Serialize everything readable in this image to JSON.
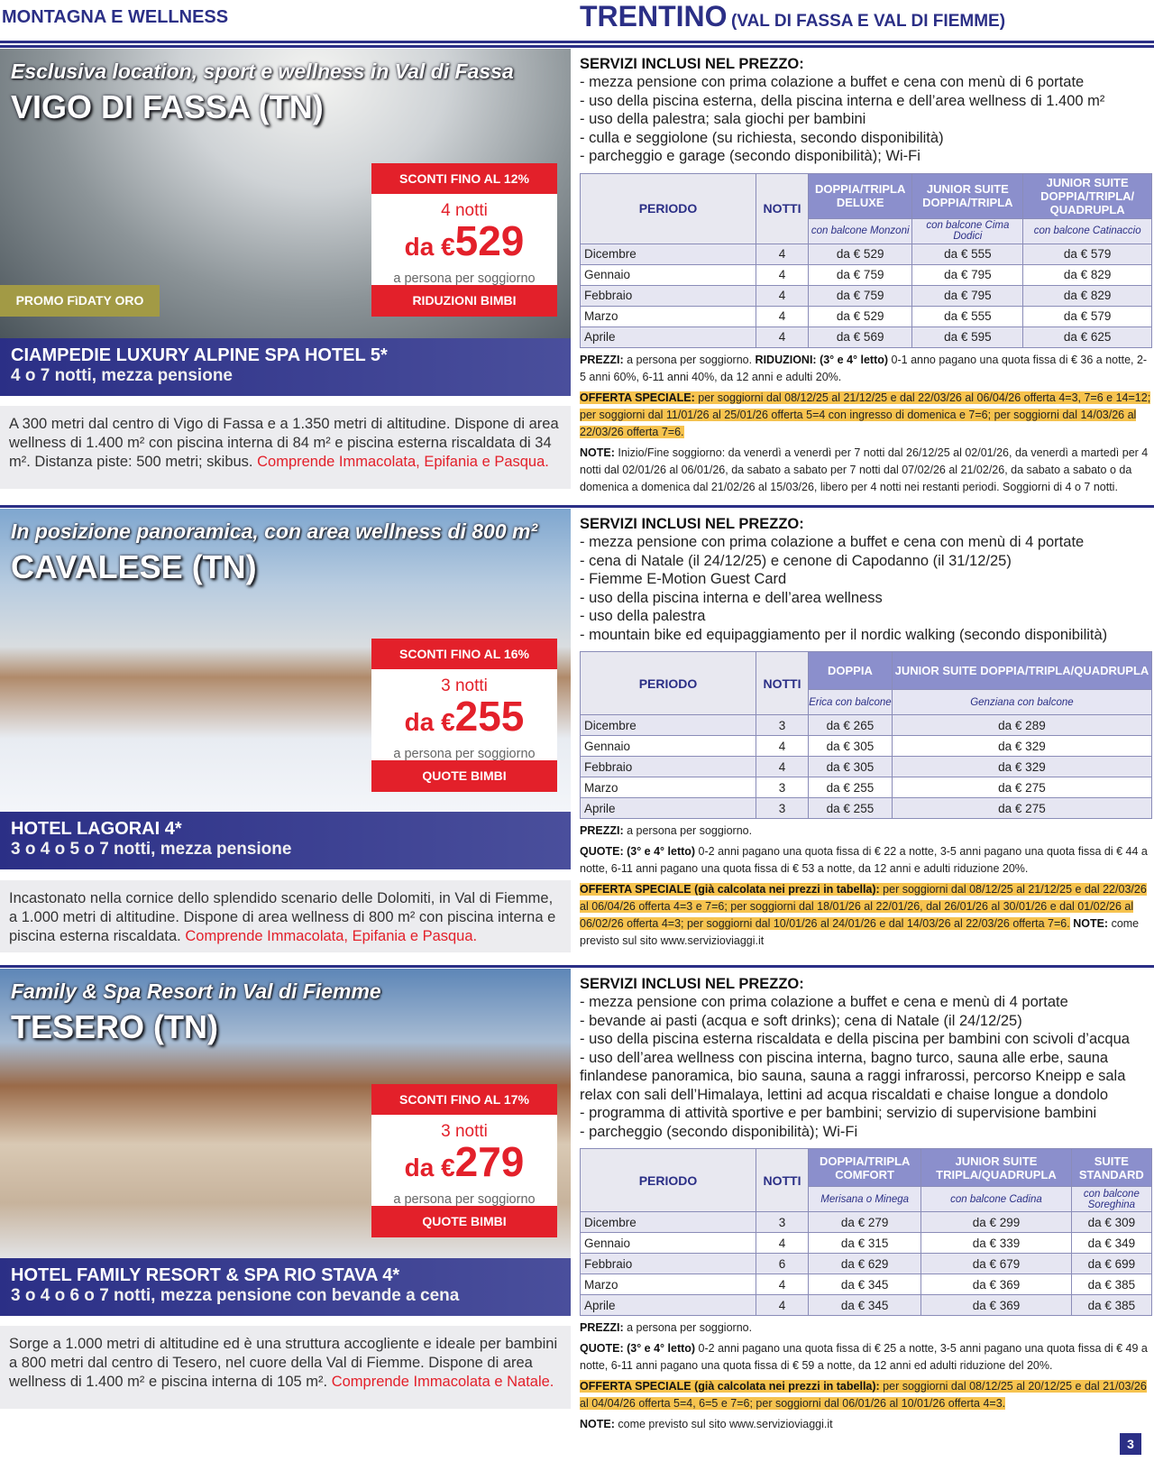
{
  "header": {
    "section": "MONTAGNA E WELLNESS",
    "region": "TRENTINO",
    "subregion": "(VAL DI FASSA E VAL DI FIEMME)"
  },
  "page_number": "3",
  "colors": {
    "brand_blue": "#2b2f86",
    "red": "#e3202a",
    "highlight": "#f6c34f",
    "promo": "#a29a45"
  },
  "hotels": [
    {
      "tagline": "Esclusiva location, sport e wellness in Val di Fassa",
      "town": "VIGO DI FASSA (TN)",
      "sconti": "SCONTI FINO AL 12%",
      "notti": "4 notti",
      "da": "da €",
      "price": "529",
      "per": "a persona per soggiorno",
      "bimbi": "RIDUZIONI BIMBI",
      "promo": "PROMO FìDATY ORO",
      "name": "CIAMPEDIE LUXURY ALPINE SPA HOTEL 5*",
      "stay": "4 o 7 notti, mezza pensione",
      "description": "A 300 metri dal centro di Vigo di Fassa e a 1.350 metri di altitudine. Dispone di area wellness di 1.400 m² con piscina interna di 84 m² e piscina esterna riscaldata di 34 m². Distanza piste: 500 metri; skibus.",
      "description_red": "Comprende Immacolata, Epifania e Pasqua.",
      "services_title": "SERVIZI INCLUSI NEL PREZZO:",
      "services": [
        "- mezza pensione con prima colazione a buffet e cena con menù di 6 portate",
        "- uso della piscina esterna, della piscina interna e dell’area wellness di 1.400 m²",
        "- uso della palestra; sala giochi per bambini",
        "- culla e seggiolone (su richiesta, secondo disponibilità)",
        "- parcheggio e garage (secondo disponibilità); Wi-Fi"
      ],
      "table": {
        "period_label": "PERIODO",
        "nights_label": "NOTTI",
        "columns": [
          {
            "title": "DOPPIA/TRIPLA DELUXE",
            "sub": "con balcone Monzoni"
          },
          {
            "title": "JUNIOR SUITE DOPPIA/TRIPLA",
            "sub": "con balcone Cima Dodici"
          },
          {
            "title": "JUNIOR SUITE DOPPIA/TRIPLA/ QUADRUPLA",
            "sub": "con balcone Catinaccio"
          }
        ],
        "rows": [
          [
            "Dicembre",
            "4",
            "da € 529",
            "da € 555",
            "da € 579"
          ],
          [
            "Gennaio",
            "4",
            "da € 759",
            "da € 795",
            "da € 829"
          ],
          [
            "Febbraio",
            "4",
            "da € 759",
            "da € 795",
            "da € 829"
          ],
          [
            "Marzo",
            "4",
            "da € 529",
            "da € 555",
            "da € 579"
          ],
          [
            "Aprile",
            "4",
            "da € 569",
            "da € 595",
            "da € 625"
          ]
        ]
      },
      "notes": [
        {
          "label": "PREZZI:",
          "text": " a persona per soggiorno. ",
          "label2": "RIDUZIONI: (3° e 4° letto)",
          "text2": " 0-1 anno pagano una quota fissa di € 36 a notte, 2-5 anni 60%, 6-11 anni 40%, da 12 anni e adulti 20%.",
          "hl": false
        },
        {
          "label": "OFFERTA SPECIALE:",
          "text": " per soggiorni dal 08/12/25 al 21/12/25 e dal 22/03/26 al 06/04/26 offerta 4=3, 7=6 e 14=12; per soggiorni dal 11/01/26 al 25/01/26 offerta 5=4 con ingresso di domenica e 7=6; per soggiorni dal 14/03/26 al 22/03/26 offerta 7=6.",
          "hl": true
        },
        {
          "label": "NOTE:",
          "text": " Inizio/Fine soggiorno: da venerdì a venerdì per 7 notti dal 26/12/25 al 02/01/26, da venerdì a martedì per 4 notti dal 02/01/26 al 06/01/26, da sabato a sabato per 7 notti dal 07/02/26 al 21/02/26, da sabato a sabato o da domenica a domenica dal 21/02/26 al 15/03/26, libero per 4 notti nei restanti periodi. Soggiorni di 4 o 7 notti.",
          "hl": false
        }
      ]
    },
    {
      "tagline": "In posizione panoramica, con area wellness di 800 m²",
      "town": "CAVALESE (TN)",
      "sconti": "SCONTI FINO AL 16%",
      "notti": "3 notti",
      "da": "da €",
      "price": "255",
      "per": "a persona per soggiorno",
      "bimbi": "QUOTE BIMBI",
      "name": "HOTEL LAGORAI 4*",
      "stay": "3 o 4 o 5 o 7 notti, mezza pensione",
      "description": "Incastonato nella cornice dello splendido scenario delle Dolomiti, in Val di Fiemme, a 1.000 metri di altitudine. Dispone di area wellness di 800 m² con piscina interna e piscina esterna riscaldata.",
      "description_red": "Comprende Immacolata, Epifania e Pasqua.",
      "services_title": "SERVIZI INCLUSI NEL PREZZO:",
      "services": [
        "- mezza pensione con prima colazione a buffet e cena con menù di 4 portate",
        "- cena di Natale (il 24/12/25) e cenone di Capodanno (il 31/12/25)",
        "- Fiemme E-Motion Guest Card",
        "- uso della piscina interna e dell’area wellness",
        "- uso della palestra",
        "- mountain bike ed equipaggiamento per il nordic walking (secondo disponibilità)"
      ],
      "table": {
        "period_label": "PERIODO",
        "nights_label": "NOTTI",
        "columns": [
          {
            "title": "DOPPIA",
            "sub": "Erica con balcone"
          },
          {
            "title": "JUNIOR SUITE DOPPIA/TRIPLA/QUADRUPLA",
            "sub": "Genziana con balcone"
          }
        ],
        "rows": [
          [
            "Dicembre",
            "3",
            "da € 265",
            "da € 289"
          ],
          [
            "Gennaio",
            "4",
            "da € 305",
            "da € 329"
          ],
          [
            "Febbraio",
            "4",
            "da € 305",
            "da € 329"
          ],
          [
            "Marzo",
            "3",
            "da € 255",
            "da € 275"
          ],
          [
            "Aprile",
            "3",
            "da € 255",
            "da € 275"
          ]
        ]
      },
      "notes": [
        {
          "label": "PREZZI:",
          "text": " a persona per soggiorno.",
          "hl": false
        },
        {
          "label": "QUOTE: (3° e 4° letto)",
          "text": " 0-2 anni pagano una quota fissa di € 22 a notte, 3-5 anni pagano una quota fissa di € 44 a notte, 6-11 anni pagano una quota fissa di € 53 a notte, da 12 anni e adulti riduzione 20%.",
          "hl": false
        },
        {
          "label": "OFFERTA SPECIALE (già calcolata nei prezzi in tabella):",
          "text": " per soggiorni dal 08/12/25 al 21/12/25 e dal 22/03/26 al 06/04/26 offerta 4=3 e 7=6; per soggiorni dal 18/01/26 al 22/01/26, dal 26/01/26 al 30/01/26 e dal 01/02/26 al 06/02/26 offerta 4=3; per soggiorni dal 10/01/26 al 24/01/26 e dal 14/03/26 al 22/03/26 offerta 7=6.",
          "hl": true,
          "label2": " NOTE:",
          "text2": " come previsto sul sito www.servizioviaggi.it"
        }
      ]
    },
    {
      "tagline": "Family & Spa Resort in Val di Fiemme",
      "town": "TESERO (TN)",
      "sconti": "SCONTI FINO AL 17%",
      "notti": "3 notti",
      "da": "da €",
      "price": "279",
      "per": "a persona per soggiorno",
      "bimbi": "QUOTE BIMBI",
      "name": "HOTEL FAMILY RESORT & SPA RIO STAVA 4*",
      "stay": "3 o 4 o 6 o 7 notti, mezza pensione con bevande a cena",
      "description": "Sorge a 1.000 metri di altitudine ed è una struttura accogliente e ideale per bambini a 800 metri dal centro di Tesero, nel cuore della Val di Fiemme. Dispone di area wellness di 1.400 m² e piscina interna di 105 m².",
      "description_red": "Comprende Immacolata e Natale.",
      "services_title": "SERVIZI INCLUSI NEL PREZZO:",
      "services": [
        "- mezza pensione con prima colazione a buffet e cena e menù di 4 portate",
        "- bevande ai pasti (acqua e soft drinks); cena di Natale (il 24/12/25)",
        "- uso della piscina esterna riscaldata e della piscina per bambini con scivoli d’acqua",
        "- uso dell’area wellness con piscina interna, bagno turco, sauna alle erbe, sauna finlandese panoramica, bio sauna, sauna a raggi infrarossi, percorso Kneipp e sala relax con sali dell’Himalaya, lettini ad acqua riscaldati e chaise longue a dondolo",
        "- programma di attività sportive e per bambini; servizio di supervisione bambini",
        "- parcheggio (secondo disponibilità); Wi-Fi"
      ],
      "table": {
        "period_label": "PERIODO",
        "nights_label": "NOTTI",
        "columns": [
          {
            "title": "DOPPIA/TRIPLA COMFORT",
            "sub": "Merisana o Minega"
          },
          {
            "title": "JUNIOR SUITE TRIPLA/QUADRUPLA",
            "sub": "con balcone Cadina"
          },
          {
            "title": "SUITE STANDARD",
            "sub": "con balcone Soreghina"
          }
        ],
        "rows": [
          [
            "Dicembre",
            "3",
            "da € 279",
            "da € 299",
            "da € 309"
          ],
          [
            "Gennaio",
            "4",
            "da € 315",
            "da € 339",
            "da € 349"
          ],
          [
            "Febbraio",
            "6",
            "da € 629",
            "da € 679",
            "da € 699"
          ],
          [
            "Marzo",
            "4",
            "da € 345",
            "da € 369",
            "da € 385"
          ],
          [
            "Aprile",
            "4",
            "da € 345",
            "da € 369",
            "da € 385"
          ]
        ]
      },
      "notes": [
        {
          "label": "PREZZI:",
          "text": " a persona per soggiorno.",
          "hl": false
        },
        {
          "label": "QUOTE: (3° e 4° letto)",
          "text": " 0-2 anni pagano una quota fissa di € 25 a notte, 3-5 anni pagano una quota fissa di € 49 a notte, 6-11 anni pagano una quota fissa di € 59 a notte, da 12 anni ed adulti riduzione del 20%.",
          "hl": false
        },
        {
          "label": "OFFERTA SPECIALE (già calcolata nei prezzi in tabella):",
          "text": " per soggiorni dal 08/12/25 al 20/12/25 e dal 21/03/26 al 04/04/26 offerta 5=4, 6=5 e 7=6; per soggiorni dal 06/01/26 al 10/01/26 offerta 4=3.",
          "hl": true
        },
        {
          "label": "NOTE:",
          "text": " come previsto sul sito www.servizioviaggi.it",
          "hl": false
        }
      ]
    }
  ]
}
